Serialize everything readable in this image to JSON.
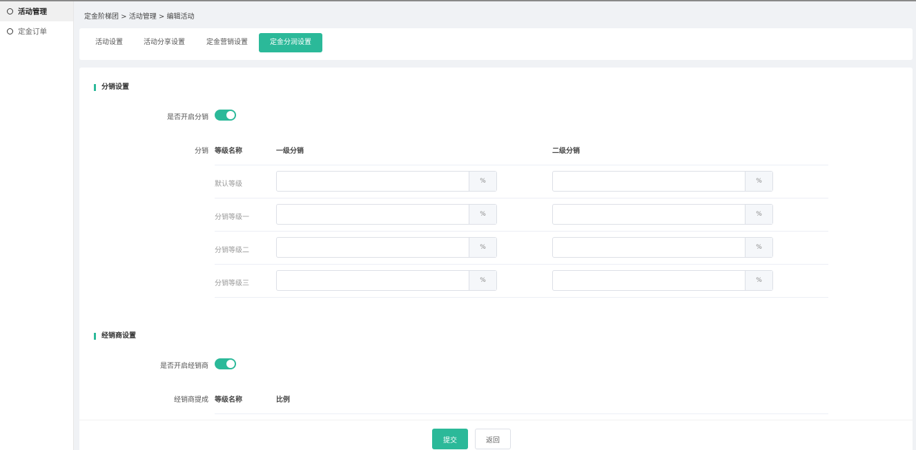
{
  "sidebar": {
    "items": [
      {
        "label": "活动管理",
        "active": true
      },
      {
        "label": "定金订单",
        "active": false
      }
    ]
  },
  "breadcrumb": "定金阶梯团 > 活动管理 > 编辑活动",
  "tabs": [
    {
      "label": "活动设置"
    },
    {
      "label": "活动分享设置"
    },
    {
      "label": "定金营销设置"
    },
    {
      "label": "定金分润设置",
      "active": true
    }
  ],
  "distribution": {
    "title": "分销设置",
    "enable_label": "是否开启分销",
    "enabled": true,
    "table_label": "分销",
    "headers": [
      "等级名称",
      "一级分销",
      "二级分销"
    ],
    "unit": "%",
    "rows": [
      {
        "name": "默认等级",
        "level1": "",
        "level2": ""
      },
      {
        "name": "分销等级一",
        "level1": "",
        "level2": ""
      },
      {
        "name": "分销等级二",
        "level1": "",
        "level2": ""
      },
      {
        "name": "分销等级三",
        "level1": "",
        "level2": ""
      }
    ]
  },
  "dealer": {
    "title": "经销商设置",
    "enable_label": "是否开启经销商",
    "enabled": true,
    "table_label": "经销商提成",
    "headers": [
      "等级名称",
      "比例"
    ]
  },
  "footer": {
    "submit": "提交",
    "back": "返回"
  },
  "colors": {
    "accent": "#2bb999"
  }
}
